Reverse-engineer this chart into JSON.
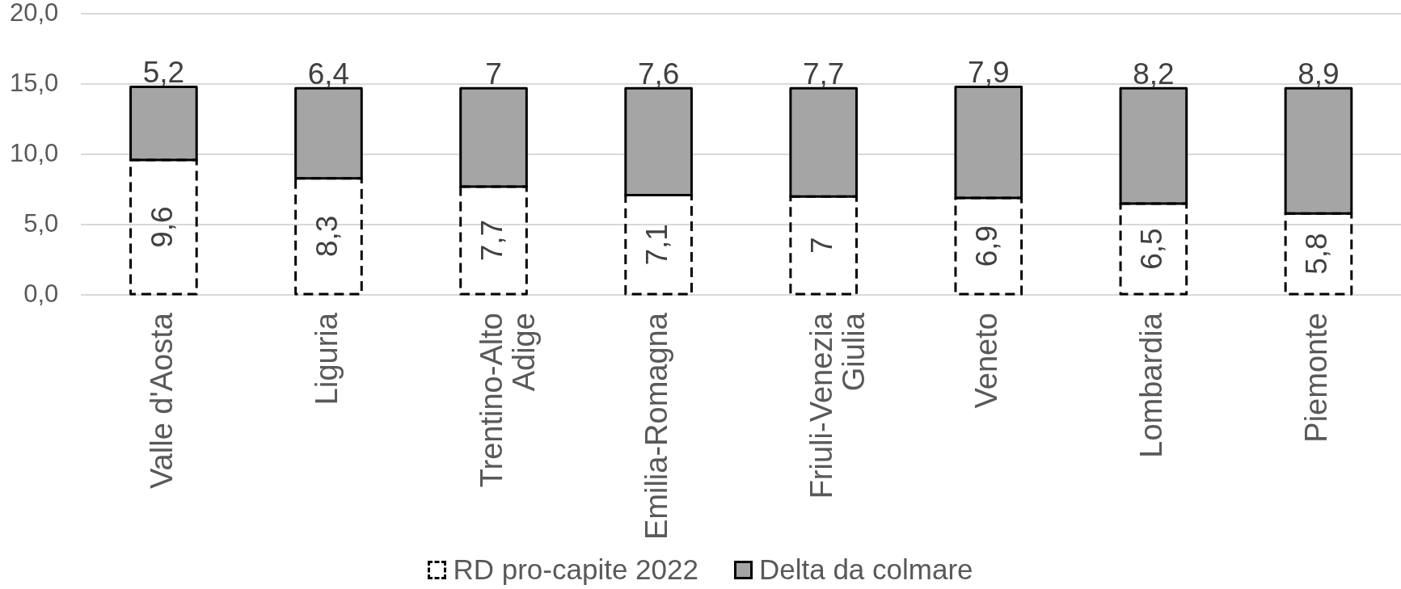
{
  "chart_data": {
    "type": "bar",
    "stacked": true,
    "categories": [
      "Valle d'Aosta",
      "Liguria",
      "Trentino-Alto Adige",
      "Emilia-Romagna",
      "Friuli-Venezia Giulia",
      "Veneto",
      "Lombardia",
      "Piemonte"
    ],
    "series": [
      {
        "name": "RD pro-capite 2022",
        "color": "#000000",
        "line_style": "dashed",
        "values": [
          9.6,
          8.3,
          7.7,
          7.1,
          7,
          6.9,
          6.5,
          5.8
        ],
        "value_labels": [
          "9,6",
          "8,3",
          "7,7",
          "7,1",
          "7",
          "6,9",
          "6,5",
          "5,8"
        ]
      },
      {
        "name": "Delta da colmare",
        "color": "#a5a5a5",
        "line_style": "solid",
        "values": [
          5.2,
          6.4,
          7,
          7.6,
          7.7,
          7.9,
          8.2,
          8.9
        ],
        "value_labels": [
          "5,2",
          "6,4",
          "7",
          "7,6",
          "7,7",
          "7,9",
          "8,2",
          "8,9"
        ]
      }
    ],
    "ylim": [
      0,
      20
    ],
    "yticks": [
      {
        "value": 0,
        "label": "0,0"
      },
      {
        "value": 5,
        "label": "5,0"
      },
      {
        "value": 10,
        "label": "10,0"
      },
      {
        "value": 15,
        "label": "15,0"
      },
      {
        "value": 20,
        "label": "20,0"
      }
    ],
    "grid": "y",
    "legend": "bottom"
  }
}
